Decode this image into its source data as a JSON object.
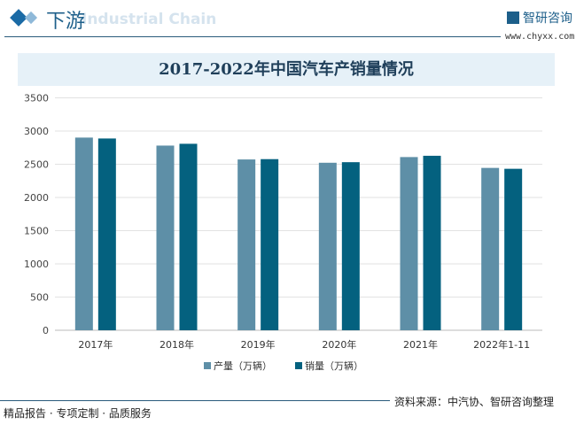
{
  "header": {
    "title": "下游",
    "subtitle": "Industrial Chain",
    "logo": "智研咨询",
    "url": "www.chyxx.com"
  },
  "footer": {
    "left": "精品报告 · 专项定制 · 品质服务",
    "source": "资料来源：中汽协、智研咨询整理"
  },
  "colors": {
    "production": "#5e8fa7",
    "sales": "#04617f"
  },
  "chart_data": {
    "type": "bar",
    "title": "2017-2022年中国汽车产销量情况",
    "categories": [
      "2017年",
      "2018年",
      "2019年",
      "2020年",
      "2021年",
      "2022年1-11"
    ],
    "series": [
      {
        "name": "产量（万辆）",
        "values": [
          2901.5,
          2780.9,
          2572.1,
          2522.5,
          2608.2,
          2444.8
        ]
      },
      {
        "name": "销量（万辆）",
        "values": [
          2887.9,
          2808.1,
          2576.9,
          2531.1,
          2627.5,
          2431.5
        ]
      }
    ],
    "ylim": [
      0,
      3500
    ],
    "yticks": [
      0,
      500,
      1000,
      1500,
      2000,
      2500,
      3000,
      3500
    ],
    "grid": true,
    "legend": "bottom"
  }
}
